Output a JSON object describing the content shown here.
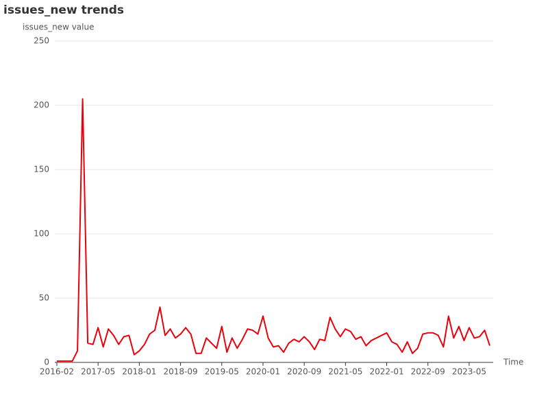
{
  "chart_data": {
    "type": "line",
    "title": "issues_new trends",
    "y_label": "issues_new value",
    "x_label": "Time",
    "categories": [
      "2016-02",
      null,
      null,
      null,
      null,
      null,
      null,
      null,
      "2017-05",
      null,
      null,
      null,
      null,
      null,
      null,
      null,
      "2018-01",
      null,
      null,
      null,
      null,
      null,
      null,
      null,
      "2018-09",
      null,
      null,
      null,
      null,
      null,
      null,
      null,
      "2019-05",
      null,
      null,
      null,
      null,
      null,
      null,
      null,
      "2020-01",
      null,
      null,
      null,
      null,
      null,
      null,
      null,
      "2020-09",
      null,
      null,
      null,
      null,
      null,
      null,
      null,
      "2021-05",
      null,
      null,
      null,
      null,
      null,
      null,
      null,
      "2022-01",
      null,
      null,
      null,
      null,
      null,
      null,
      null,
      "2022-09",
      null,
      null,
      null,
      null,
      null,
      null,
      null,
      "2023-05",
      null,
      null,
      null,
      null
    ],
    "series": [
      {
        "name": "issues_new",
        "color": "#e8000b",
        "values": [
          1,
          1,
          1,
          1,
          9,
          205,
          15,
          14,
          27,
          12,
          26,
          21,
          14,
          20,
          21,
          6,
          9,
          14,
          22,
          25,
          43,
          21,
          26,
          19,
          22,
          27,
          22,
          7,
          7,
          19,
          15,
          11,
          28,
          8,
          19,
          11,
          18,
          26,
          25,
          22,
          36,
          19,
          12,
          13,
          8,
          15,
          18,
          16,
          20,
          16,
          10,
          18,
          17,
          35,
          26,
          20,
          26,
          24,
          18,
          20,
          13,
          17,
          19,
          21,
          23,
          16,
          14,
          8,
          16,
          7,
          11,
          22,
          23,
          23,
          21,
          12,
          36,
          19,
          28,
          17,
          27,
          19,
          20,
          25,
          13
        ]
      }
    ],
    "ylim": [
      0,
      250
    ],
    "yticks": [
      0,
      50,
      100,
      150,
      200,
      250
    ],
    "grid": true
  }
}
